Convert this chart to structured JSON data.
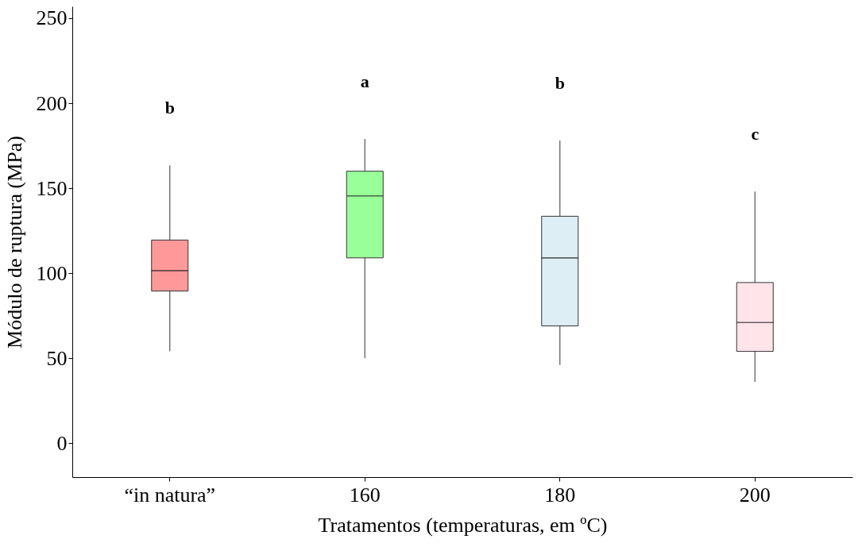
{
  "chart_data": {
    "type": "box",
    "xlabel": "Tratamentos  (temperaturas, em ºC)",
    "ylabel": "Módulo de  ruptura (MPa)",
    "categories": [
      "“in natura”",
      "160",
      "180",
      "200"
    ],
    "colors": [
      "#ff9999",
      "#99ff99",
      "#deeef5",
      "#ffe4ea"
    ],
    "boxes": [
      {
        "low": 54,
        "q1": 89.5,
        "median": 101.5,
        "q3": 119.5,
        "high": 163.5
      },
      {
        "low": 50,
        "q1": 109,
        "median": 145.5,
        "q3": 160,
        "high": 179
      },
      {
        "low": 46,
        "q1": 69,
        "median": 109,
        "q3": 133.5,
        "high": 178
      },
      {
        "low": 36,
        "q1": 54,
        "median": 71,
        "q3": 94.5,
        "high": 148
      }
    ],
    "ylim": [
      -20,
      257
    ],
    "yticks": [
      0,
      50,
      100,
      150,
      200,
      250
    ],
    "grid": false,
    "annotations": [
      "b",
      "a",
      "b",
      "c"
    ]
  }
}
